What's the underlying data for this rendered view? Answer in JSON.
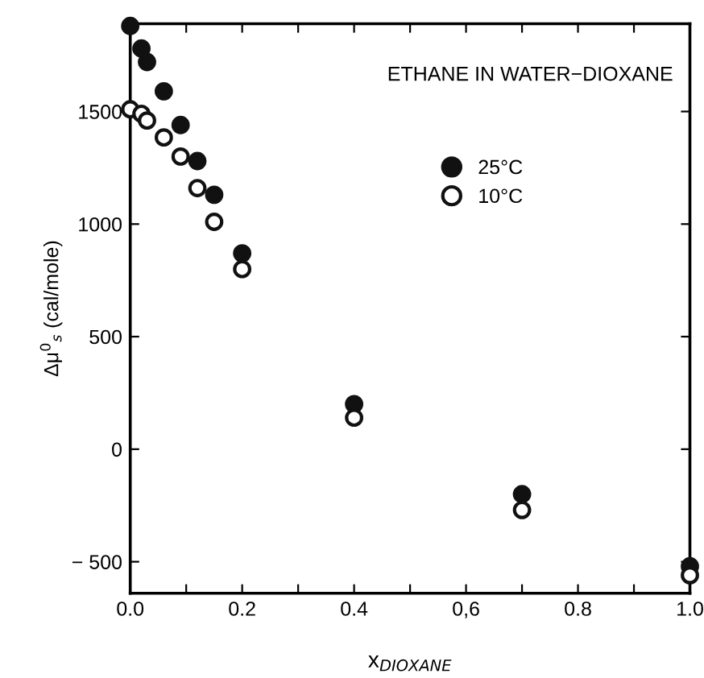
{
  "chart_data": {
    "type": "scatter",
    "x": [
      0,
      0.02,
      0.03,
      0.06,
      0.09,
      0.12,
      0.15,
      0.2,
      0.4,
      0.7,
      1.0
    ],
    "series": [
      {
        "name": "25°C",
        "color": "#111111",
        "values": [
          1880,
          1780,
          1720,
          1590,
          1440,
          1280,
          1130,
          870,
          200,
          -200,
          -520
        ]
      },
      {
        "name": "10°C",
        "color": "#111111",
        "values": [
          1510,
          1490,
          1460,
          1385,
          1300,
          1160,
          1010,
          800,
          140,
          -270,
          -560
        ]
      }
    ],
    "xlabel": "x$_{DIOXANE}$",
    "ylabel": "Δμ$^{0}$$_{s}$ (cal/mole)",
    "annotations": [
      "ETHANE IN WATER−DIOXANE"
    ],
    "xlim": [
      0,
      1.0
    ],
    "ylim": [
      -640,
      1890
    ],
    "xticks": [
      {
        "value": 0,
        "label": "0.0"
      },
      {
        "value": 0.1,
        "label": null
      },
      {
        "value": 0.2,
        "label": "0.2"
      },
      {
        "value": 0.3,
        "label": null
      },
      {
        "value": 0.4,
        "label": "0.4"
      },
      {
        "value": 0.5,
        "label": null
      },
      {
        "value": 0.6,
        "label": "0,6"
      },
      {
        "value": 0.7,
        "label": null
      },
      {
        "value": 0.8,
        "label": "0.8"
      },
      {
        "value": 0.9,
        "label": null
      },
      {
        "value": 1.0,
        "label": "1.0"
      }
    ],
    "yticks": [
      {
        "value": -500,
        "label": "− 500"
      },
      0,
      500,
      1000,
      1500
    ],
    "marker": "circle",
    "legend": "top right",
    "grid": false
  }
}
